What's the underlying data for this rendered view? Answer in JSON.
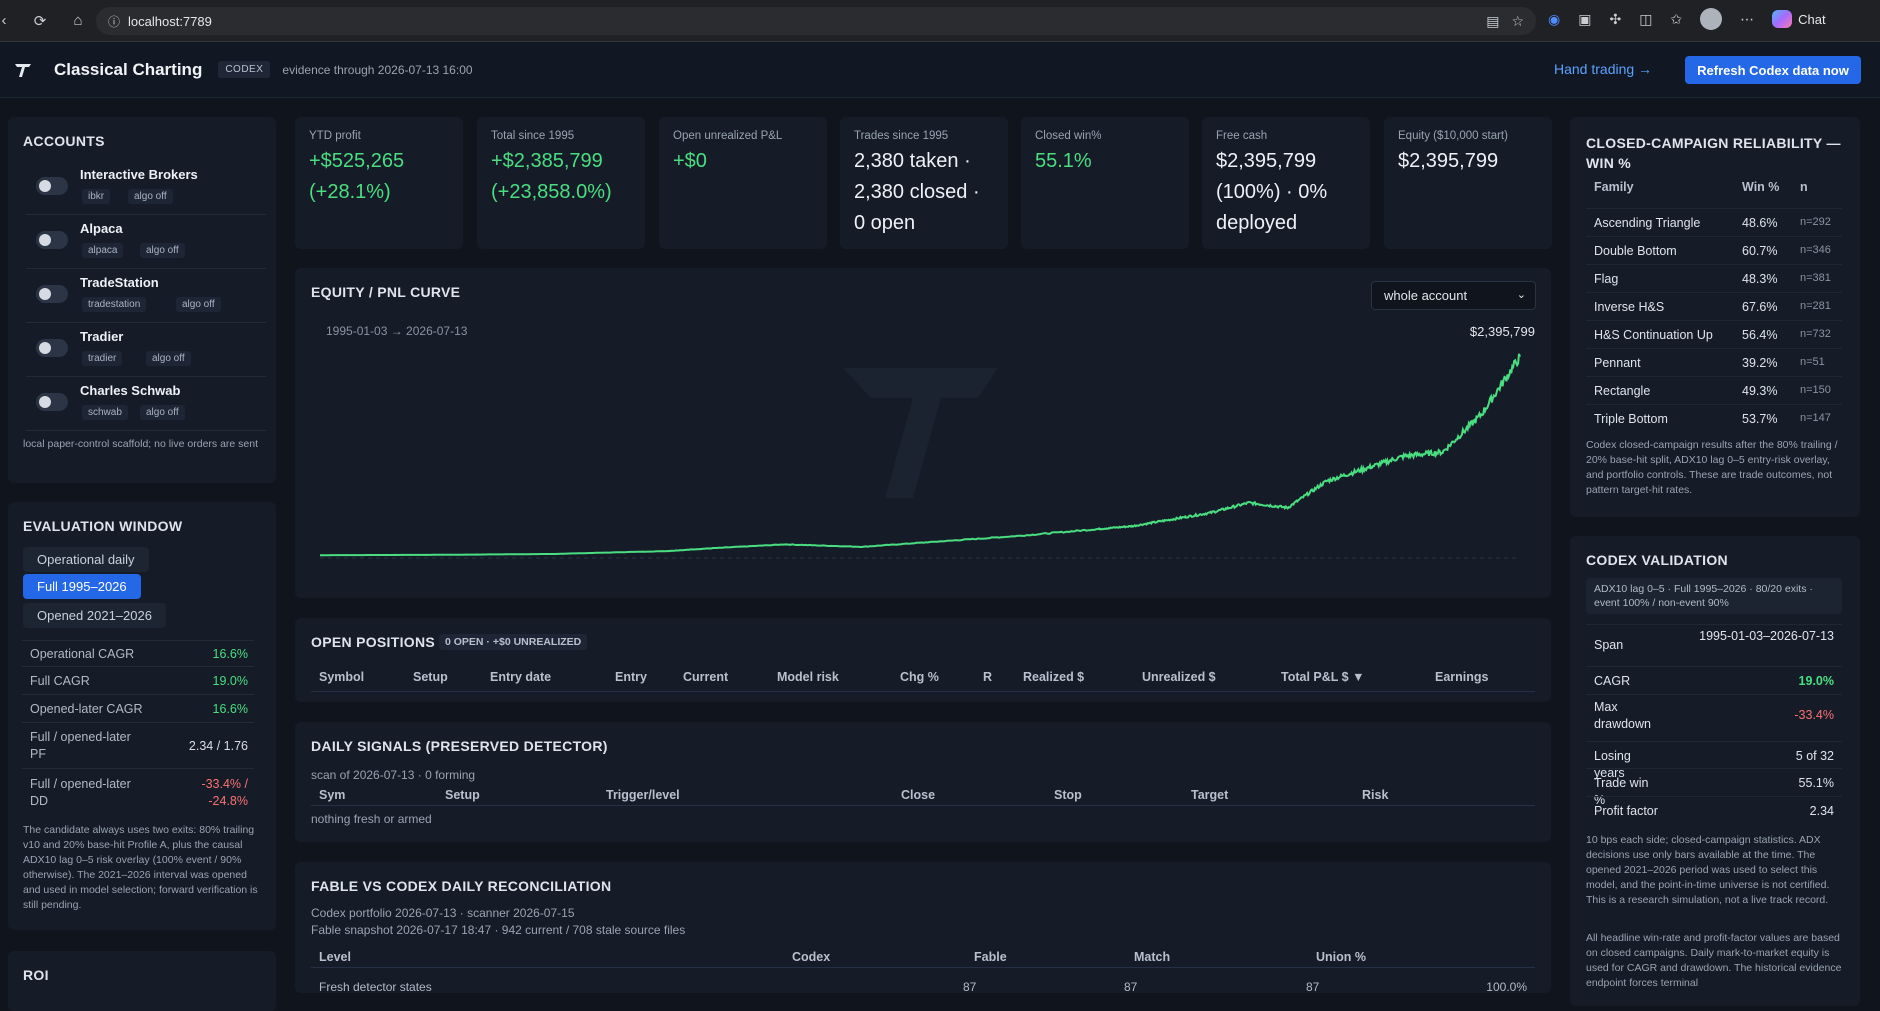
{
  "browser": {
    "url": "localhost:7789",
    "chat_label": "Chat"
  },
  "header": {
    "title": "Classical Charting",
    "badge": "CODEX",
    "evidence": "evidence through 2026-07-13 16:00",
    "hand_link": "Hand trading →",
    "refresh_label": "Refresh Codex data now"
  },
  "accounts": {
    "title": "ACCOUNTS",
    "items": [
      {
        "name": "Interactive Brokers",
        "tag": "ibkr",
        "algo": "algo off"
      },
      {
        "name": "Alpaca",
        "tag": "alpaca",
        "algo": "algo off"
      },
      {
        "name": "TradeStation",
        "tag": "tradestation",
        "algo": "algo off"
      },
      {
        "name": "Tradier",
        "tag": "tradier",
        "algo": "algo off"
      },
      {
        "name": "Charles Schwab",
        "tag": "schwab",
        "algo": "algo off"
      }
    ],
    "note": "local paper-control scaffold; no live orders are sent"
  },
  "evaluation": {
    "title": "EVALUATION WINDOW",
    "buttons": [
      "Operational daily",
      "Full 1995–2026",
      "Opened 2021–2026"
    ],
    "active": "Full 1995–2026",
    "rows": [
      {
        "label": "Operational CAGR",
        "value": "16.6%"
      },
      {
        "label": "Full CAGR",
        "value": "19.0%"
      },
      {
        "label": "Opened-later CAGR",
        "value": "16.6%"
      },
      {
        "label": "Full / opened-later PF",
        "value": "2.34 / 1.76"
      },
      {
        "label": "Full / opened-later DD",
        "value": "-33.4% / -24.8%"
      }
    ],
    "note": "The candidate always uses two exits: 80% trailing v10 and 20% base-hit Profile A, plus the causal ADX10 lag 0–5 risk overlay (100% event / 90% otherwise). The 2021–2026 interval was opened and used in model selection; forward verification is still pending."
  },
  "roi": {
    "title": "ROI"
  },
  "kpis": [
    {
      "label": "YTD profit",
      "value": "+$525,265 (+28.1%)"
    },
    {
      "label": "Total since 1995",
      "value": "+$2,385,799 (+23,858.0%)"
    },
    {
      "label": "Open unrealized P&L",
      "value": "+$0"
    },
    {
      "label": "Trades since 1995",
      "value": "2,380 taken · 2,380 closed · 0 open"
    },
    {
      "label": "Closed win%",
      "value": "55.1%"
    },
    {
      "label": "Free cash",
      "value": "$2,395,799 (100%) · 0% deployed"
    },
    {
      "label": "Equity ($10,000 start)",
      "value": "$2,395,799"
    }
  ],
  "equity": {
    "title": "EQUITY / PNL CURVE",
    "range": "1995-01-03 → 2026-07-13",
    "end_value": "$2,395,799",
    "selector": "whole account",
    "points": [
      [
        "1995",
        10000
      ],
      [
        "1998",
        14000
      ],
      [
        "2001",
        24000
      ],
      [
        "2004",
        60000
      ],
      [
        "2005",
        90000
      ],
      [
        "2007",
        140000
      ],
      [
        "2009",
        110000
      ],
      [
        "2011",
        175000
      ],
      [
        "2013",
        240000
      ],
      [
        "2015",
        320000
      ],
      [
        "2016",
        360000
      ],
      [
        "2017",
        440000
      ],
      [
        "2018",
        520000
      ],
      [
        "2019",
        640000
      ],
      [
        "2020",
        580000
      ],
      [
        "2021",
        900000
      ],
      [
        "2022",
        1050000
      ],
      [
        "2023",
        1200000
      ],
      [
        "2024",
        1250000
      ],
      [
        "2025",
        1700000
      ],
      [
        "2026",
        2395799
      ]
    ]
  },
  "positions": {
    "title": "OPEN POSITIONS",
    "summary": "0 OPEN · +$0 UNREALIZED",
    "columns": [
      "Symbol",
      "Setup",
      "Entry date",
      "Entry",
      "Current",
      "Model risk",
      "Chg %",
      "R",
      "Realized $",
      "Unrealized $",
      "Total P&L $ ▼",
      "Earnings"
    ]
  },
  "signals": {
    "title": "DAILY SIGNALS (PRESERVED DETECTOR)",
    "scan": "scan of 2026-07-13 · 0 forming",
    "columns": [
      "Sym",
      "Setup",
      "Trigger/level",
      "Close",
      "Stop",
      "Target",
      "Risk"
    ],
    "empty": "nothing fresh or armed"
  },
  "reconciliation": {
    "title": "FABLE VS CODEX DAILY RECONCILIATION",
    "line1": "Codex portfolio 2026-07-13 · scanner 2026-07-15",
    "line2": "Fable snapshot 2026-07-17 18:47 · 942 current / 708 stale source files",
    "columns": [
      "Level",
      "Codex",
      "Fable",
      "Match",
      "Union %"
    ],
    "row": {
      "level": "Fresh detector states",
      "codex": "87",
      "fable": "87",
      "match": "87",
      "union": "100.0%"
    }
  },
  "reliability": {
    "title": "CLOSED-CAMPAIGN RELIABILITY — WIN %",
    "columns": [
      "Family",
      "Win %",
      "n"
    ],
    "rows": [
      {
        "family": "Ascending Triangle",
        "win": "48.6%",
        "n": "n=292"
      },
      {
        "family": "Double Bottom",
        "win": "60.7%",
        "n": "n=346"
      },
      {
        "family": "Flag",
        "win": "48.3%",
        "n": "n=381"
      },
      {
        "family": "Inverse H&S",
        "win": "67.6%",
        "n": "n=281"
      },
      {
        "family": "H&S Continuation Up",
        "win": "56.4%",
        "n": "n=732"
      },
      {
        "family": "Pennant",
        "win": "39.2%",
        "n": "n=51"
      },
      {
        "family": "Rectangle",
        "win": "49.3%",
        "n": "n=150"
      },
      {
        "family": "Triple Bottom",
        "win": "53.7%",
        "n": "n=147"
      }
    ],
    "note": "Codex closed-campaign results after the 80% trailing / 20% base-hit split, ADX10 lag 0–5 entry-risk overlay, and portfolio controls. These are trade outcomes, not pattern target-hit rates."
  },
  "validation": {
    "title": "CODEX VALIDATION",
    "chip": "ADX10 lag 0–5 · Full 1995–2026 · 80/20 exits · event 100% / non-event 90%",
    "rows": [
      {
        "label": "Span",
        "value": "1995-01-03–2026-07-13"
      },
      {
        "label": "CAGR",
        "value": "19.0%"
      },
      {
        "label": "Max drawdown",
        "value": "-33.4%"
      },
      {
        "label": "Losing years",
        "value": "5 of 32"
      },
      {
        "label": "Trade win %",
        "value": "55.1%"
      },
      {
        "label": "Profit factor",
        "value": "2.34"
      }
    ],
    "note1": "10 bps each side; closed-campaign statistics. ADX decisions use only bars available at the time. The opened 2021–2026 period was used to select this model, and the point-in-time universe is not certified. This is a research simulation, not a live track record.",
    "note2": "All headline win-rate and profit-factor values are based on closed campaigns. Daily mark-to-market equity is used for CAGR and drawdown. The historical evidence endpoint forces terminal"
  },
  "colors": {
    "accent": "#2468e8",
    "green": "#4ade80",
    "red": "#f87171",
    "line": "#4ade80"
  }
}
